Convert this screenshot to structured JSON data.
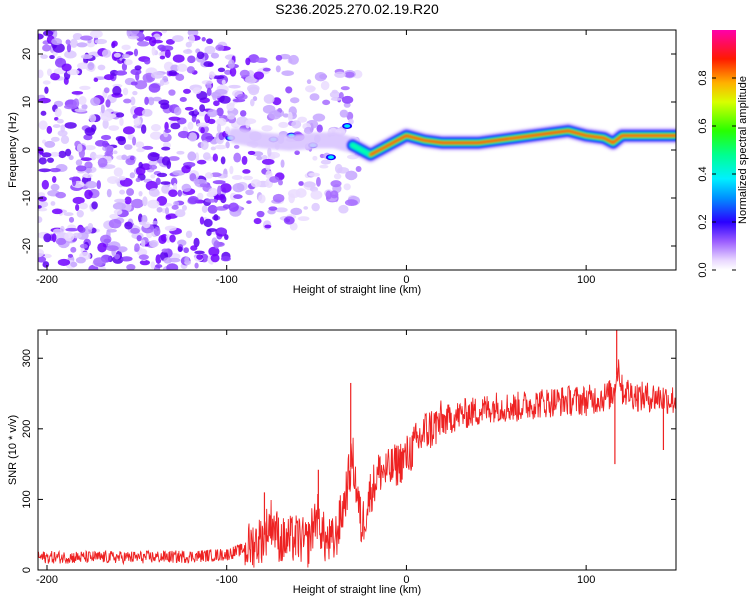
{
  "title": "S236.2025.270.02.19.R20",
  "colors": {
    "scatter": "#7a00ff",
    "snr_line": "#ee2222",
    "colormap": [
      "#ffffff",
      "#dcc8ff",
      "#a66bff",
      "#7000ff",
      "#1a00ff",
      "#00c8ff",
      "#00ffc0",
      "#28ff00",
      "#ffff00",
      "#ff9a00",
      "#ff0000",
      "#ff00aa"
    ]
  },
  "chart_data": [
    {
      "type": "heatmap",
      "panel": "spectrogram",
      "xlabel": "Height of straight line (km)",
      "ylabel": "Frequency (Hz)",
      "xlim": [
        -205,
        150
      ],
      "ylim": [
        -25,
        25
      ],
      "xticks": [
        -200,
        -100,
        0,
        100
      ],
      "xtick_labels": [
        "-200",
        "-100",
        "0",
        "100"
      ],
      "yticks": [
        -20,
        -10,
        0,
        10,
        20
      ],
      "ytick_labels": [
        "-20",
        "-10",
        "0",
        "10",
        "20"
      ],
      "colorbar": {
        "label": "Normalized spectral amplitude",
        "range": [
          0,
          1
        ],
        "ticks": [
          0.0,
          0.2,
          0.4,
          0.6,
          0.8
        ],
        "tick_labels": [
          "0.0",
          "0.2",
          "0.4",
          "0.6",
          "0.8"
        ]
      },
      "ridge": {
        "description": "carrier tone frequency vs height",
        "x": [
          -105,
          -95,
          -80,
          -65,
          -50,
          -40,
          -30,
          -25,
          -20,
          -10,
          0,
          10,
          20,
          40,
          60,
          80,
          90,
          100,
          110,
          115,
          120,
          150
        ],
        "freq": [
          2.5,
          3.0,
          2.0,
          1.5,
          2.0,
          2.0,
          1.0,
          0.0,
          -1.0,
          1.0,
          3.0,
          2.0,
          1.5,
          1.5,
          2.5,
          3.5,
          4.0,
          3.0,
          2.5,
          1.5,
          3.0,
          3.0
        ]
      }
    },
    {
      "type": "line",
      "panel": "snr",
      "xlabel": "Height of straight line (km)",
      "ylabel": "SNR (10 * v/v)",
      "xlim": [
        -205,
        150
      ],
      "ylim": [
        0,
        340
      ],
      "xticks": [
        -200,
        -100,
        0,
        100
      ],
      "xtick_labels": [
        "-200",
        "-100",
        "0",
        "100"
      ],
      "yticks": [
        0,
        100,
        200,
        300
      ],
      "ytick_labels": [
        "0",
        "100",
        "200",
        "300"
      ],
      "series": [
        {
          "name": "SNR",
          "x": [
            -205,
            -180,
            -150,
            -120,
            -100,
            -90,
            -80,
            -75,
            -70,
            -60,
            -55,
            -50,
            -45,
            -40,
            -35,
            -30,
            -25,
            -20,
            -15,
            -10,
            -5,
            0,
            10,
            20,
            30,
            40,
            50,
            60,
            70,
            80,
            90,
            100,
            110,
            115,
            118,
            120,
            130,
            140,
            150
          ],
          "values": [
            18,
            18,
            18,
            19,
            22,
            30,
            45,
            70,
            40,
            45,
            35,
            80,
            40,
            40,
            90,
            160,
            60,
            110,
            140,
            140,
            150,
            160,
            195,
            210,
            220,
            225,
            232,
            230,
            235,
            238,
            240,
            240,
            245,
            250,
            290,
            255,
            245,
            245,
            240
          ]
        }
      ],
      "spikes": [
        {
          "x": -79,
          "y": 110
        },
        {
          "x": -49,
          "y": 142
        },
        {
          "x": -31,
          "y": 265
        },
        {
          "x": 117,
          "y": 340
        },
        {
          "x": 116,
          "y": 150
        },
        {
          "x": 143,
          "y": 170
        }
      ]
    }
  ]
}
